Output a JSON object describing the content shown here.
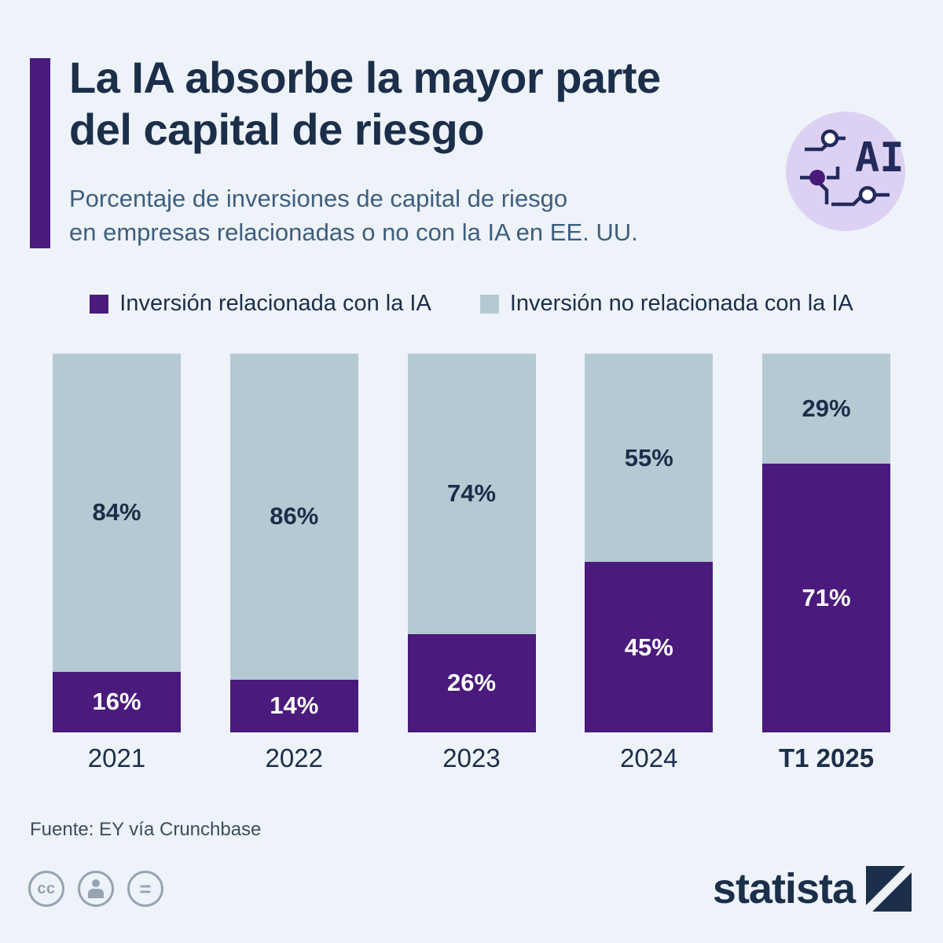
{
  "header": {
    "title_line1": "La IA absorbe la mayor parte",
    "title_line2": "del capital de riesgo",
    "subtitle_line1": "Porcentaje de inversiones de capital de riesgo",
    "subtitle_line2": "en empresas relacionadas o no con la IA en EE. UU.",
    "ai_badge_text": "AI"
  },
  "legend": [
    {
      "label": "Inversión relacionada con la IA",
      "color": "#4a1a7c"
    },
    {
      "label": "Inversión no relacionada con la IA",
      "color": "#b5c9d3"
    }
  ],
  "chart_data": {
    "type": "bar",
    "stacked": true,
    "categories": [
      "2021",
      "2022",
      "2023",
      "2024",
      "T1 2025"
    ],
    "highlight_category": "T1 2025",
    "series": [
      {
        "name": "Inversión relacionada con la IA",
        "color": "#4a1a7c",
        "values": [
          16,
          14,
          26,
          45,
          71
        ]
      },
      {
        "name": "Inversión no relacionada con la IA",
        "color": "#b5c9d3",
        "values": [
          84,
          86,
          74,
          55,
          29
        ]
      }
    ],
    "value_suffix": "%",
    "ylim": [
      0,
      100
    ],
    "grid": false,
    "legend_position": "top"
  },
  "footer": {
    "source": "Fuente: EY vía Crunchbase",
    "brand": "statista",
    "license_icons": [
      "cc-icon",
      "attribution-person-icon",
      "equals-icon"
    ]
  },
  "colors": {
    "background": "#eef3f9",
    "title_navy": "#1b2e4a",
    "subtitle_slate": "#3f5e7e",
    "accent_purple": "#4a1a7c",
    "bar_gray_blue": "#b5c9d3",
    "ai_badge_bg": "#ddd1f3"
  }
}
